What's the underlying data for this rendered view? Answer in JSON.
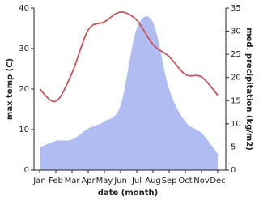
{
  "chart_data": {
    "type": "line-area",
    "x_label": "date (month)",
    "y_label": "max temp (C)",
    "y2_label": "med. precipitation (kg/m2)",
    "categories": [
      "Jan",
      "Feb",
      "Mar",
      "Apr",
      "May",
      "Jun",
      "Jul",
      "Aug",
      "Sep",
      "Oct",
      "Nov",
      "Dec"
    ],
    "series": [
      {
        "name": "max temp",
        "color": "#cd5258",
        "values": [
          20,
          17,
          24,
          34.6,
          36.6,
          39,
          37,
          31,
          28,
          23.6,
          23,
          18.5
        ]
      },
      {
        "name": "precipitation",
        "color": "#b0bdf2",
        "axis": "y2",
        "values": [
          4.9,
          6.3,
          6.6,
          9,
          10.5,
          14,
          30.6,
          31.9,
          17.5,
          10.5,
          8,
          3.5
        ]
      }
    ],
    "ylim": [
      0,
      40
    ],
    "yticks": [
      0,
      10,
      20,
      30,
      40
    ],
    "y2lim": [
      0,
      35
    ],
    "y2ticks": [
      0,
      5,
      10,
      15,
      20,
      25,
      30,
      35
    ]
  }
}
